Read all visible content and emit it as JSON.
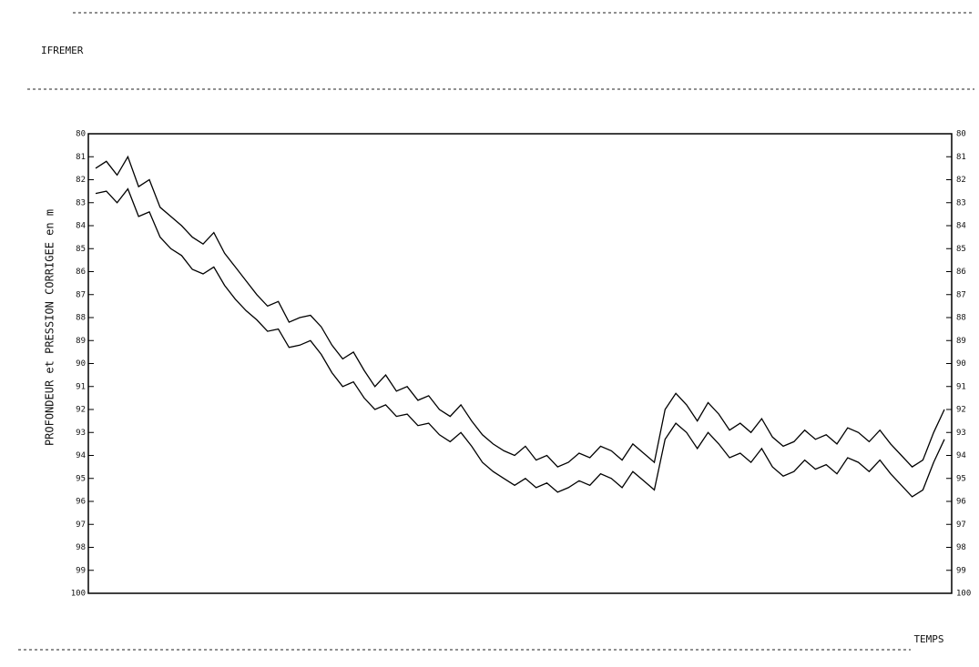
{
  "chart_data": {
    "type": "line",
    "header": "IFREMER",
    "ylabel": "PROFONDEUR et PRESSION CORRIGEE en m",
    "xlabel": "TEMPS",
    "categories": [
      null,
      null,
      null,
      null,
      null,
      null,
      null,
      null,
      null,
      null,
      null,
      null,
      null,
      null,
      null,
      null,
      null,
      null,
      null,
      null,
      null,
      null,
      null,
      null,
      null,
      null,
      null,
      null,
      null,
      null,
      null,
      null,
      null,
      null,
      null,
      null,
      null,
      null,
      null,
      null,
      null,
      null,
      null,
      null,
      null,
      null,
      null,
      null,
      null,
      null,
      null,
      null,
      null,
      null,
      null,
      null,
      null,
      null,
      null,
      null,
      null,
      null,
      null,
      null,
      null,
      null,
      null,
      null,
      null,
      null,
      null,
      null,
      null,
      null,
      null,
      null,
      null,
      null,
      null,
      null
    ],
    "series": [
      {
        "name": null,
        "color": "#000000",
        "values": [
          81.5,
          81.2,
          81.8,
          81.0,
          82.3,
          82.0,
          83.2,
          83.6,
          84.0,
          84.5,
          84.8,
          84.3,
          85.2,
          85.8,
          86.4,
          87.0,
          87.5,
          87.3,
          88.2,
          88.0,
          87.9,
          88.4,
          89.2,
          89.8,
          89.5,
          90.3,
          91.0,
          90.5,
          91.2,
          91.0,
          91.6,
          91.4,
          92.0,
          92.3,
          91.8,
          92.5,
          93.1,
          93.5,
          93.8,
          94.0,
          93.6,
          94.2,
          94.0,
          94.5,
          94.3,
          93.9,
          94.1,
          93.6,
          93.8,
          94.2,
          93.5,
          93.9,
          94.3,
          92.0,
          91.3,
          91.8,
          92.5,
          91.7,
          92.2,
          92.9,
          92.6,
          93.0,
          92.4,
          93.2,
          93.6,
          93.4,
          92.9,
          93.3,
          93.1,
          93.5,
          92.8,
          93.0,
          93.4,
          92.9,
          93.5,
          94.0,
          94.5,
          94.2,
          93.0,
          92.0
        ]
      },
      {
        "name": null,
        "color": "#000000",
        "values": [
          82.6,
          82.5,
          83.0,
          82.4,
          83.6,
          83.4,
          84.5,
          85.0,
          85.3,
          85.9,
          86.1,
          85.8,
          86.6,
          87.2,
          87.7,
          88.1,
          88.6,
          88.5,
          89.3,
          89.2,
          89.0,
          89.6,
          90.4,
          91.0,
          90.8,
          91.5,
          92.0,
          91.8,
          92.3,
          92.2,
          92.7,
          92.6,
          93.1,
          93.4,
          93.0,
          93.6,
          94.3,
          94.7,
          95.0,
          95.3,
          95.0,
          95.4,
          95.2,
          95.6,
          95.4,
          95.1,
          95.3,
          94.8,
          95.0,
          95.4,
          94.7,
          95.1,
          95.5,
          93.3,
          92.6,
          93.0,
          93.7,
          93.0,
          93.5,
          94.1,
          93.9,
          94.3,
          93.7,
          94.5,
          94.9,
          94.7,
          94.2,
          94.6,
          94.4,
          94.8,
          94.1,
          94.3,
          94.7,
          94.2,
          94.8,
          95.3,
          95.8,
          95.5,
          94.3,
          93.3
        ]
      }
    ],
    "ylim": [
      100,
      80
    ],
    "yticks": [
      80,
      81,
      82,
      83,
      84,
      85,
      86,
      87,
      88,
      89,
      90,
      91,
      92,
      93,
      94,
      95,
      96,
      97,
      98,
      99,
      100
    ]
  }
}
